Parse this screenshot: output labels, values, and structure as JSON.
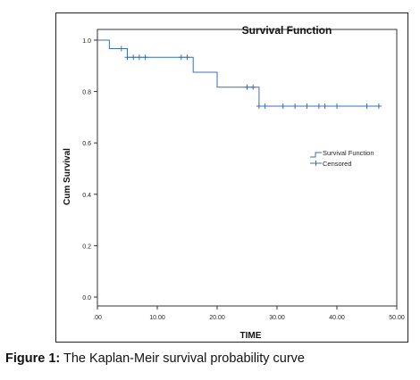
{
  "chart_data": {
    "type": "line",
    "title": "Survival Function",
    "xlabel": "TIME",
    "ylabel": "Cum Survival",
    "xlim": [
      0,
      50
    ],
    "ylim": [
      0,
      1.0
    ],
    "x_ticks": [
      ".00",
      "10.00",
      "20.00",
      "30.00",
      "40.00",
      "50.00"
    ],
    "x_tick_values": [
      0,
      10,
      20,
      30,
      40,
      50
    ],
    "y_ticks": [
      "0.0",
      "0.2",
      "0.4",
      "0.6",
      "0.8",
      "1.0"
    ],
    "y_tick_values": [
      0,
      0.2,
      0.4,
      0.6,
      0.8,
      1.0
    ],
    "grid": false,
    "legend": "right",
    "series": [
      {
        "name": "Survival Function",
        "color": "#3a6fb0",
        "step_x": [
          0,
          2,
          2,
          5,
          5,
          16,
          16,
          20,
          20,
          27,
          27,
          47
        ],
        "step_y": [
          1.0,
          1.0,
          0.967,
          0.967,
          0.933,
          0.933,
          0.875,
          0.875,
          0.817,
          0.817,
          0.743,
          0.743
        ]
      },
      {
        "name": "Censored",
        "color": "#3a6fb0",
        "x": [
          4,
          5,
          6,
          7,
          8,
          14,
          15,
          25,
          26,
          27,
          28,
          31,
          33,
          35,
          37,
          38,
          40,
          45,
          47
        ],
        "y": [
          0.967,
          0.933,
          0.933,
          0.933,
          0.933,
          0.933,
          0.933,
          0.817,
          0.817,
          0.743,
          0.743,
          0.743,
          0.743,
          0.743,
          0.743,
          0.743,
          0.743,
          0.743,
          0.743
        ]
      }
    ]
  },
  "caption": {
    "label": "Figure 1:",
    "text": " The Kaplan-Meir survival probability curve"
  }
}
